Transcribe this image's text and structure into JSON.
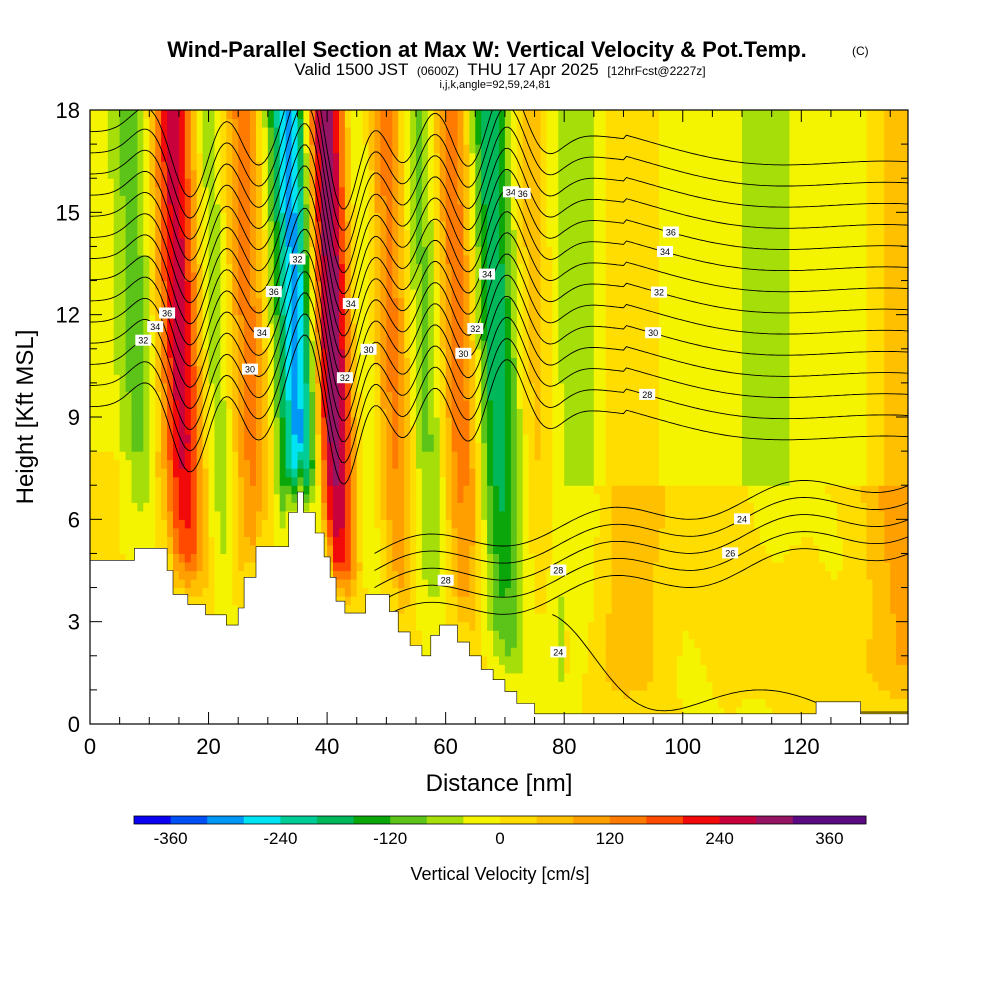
{
  "title": {
    "main": "Wind-Parallel Section at Max W: Vertical Velocity & Pot.Temp.",
    "main_suffix": "(C)",
    "valid_prefix": "Valid 1500 JST",
    "valid_utc": "(0600Z)",
    "valid_date": "THU 17 Apr 2025",
    "forecast_tag": "[12hrFcst@2227z]",
    "indices": "i,j,k,angle=92,59,24,81"
  },
  "chart_data": {
    "type": "heatmap",
    "xlabel": "Distance [nm]",
    "ylabel": "Height [Kft MSL]",
    "xlim": [
      0,
      138
    ],
    "ylim": [
      0,
      18
    ],
    "x_ticks": [
      "0",
      "20",
      "40",
      "60",
      "80",
      "100",
      "120"
    ],
    "y_ticks": [
      "0",
      "3",
      "6",
      "9",
      "12",
      "15",
      "18"
    ],
    "colorbar": {
      "label": "Vertical Velocity [cm/s]",
      "tick_labels": [
        "-360",
        "-240",
        "-120",
        "0",
        "120",
        "240",
        "360"
      ],
      "levels": [
        -400,
        -360,
        -320,
        -280,
        -240,
        -200,
        -160,
        -120,
        -80,
        -40,
        0,
        40,
        80,
        120,
        160,
        200,
        240,
        280,
        320,
        360,
        400
      ],
      "colors": [
        "#0a00f2",
        "#0050f5",
        "#0097f7",
        "#00e3f2",
        "#00cc96",
        "#00b85a",
        "#0aa60a",
        "#5cc418",
        "#a6de0a",
        "#f4f400",
        "#ffdd00",
        "#ffc000",
        "#ffa000",
        "#ff7a00",
        "#ff4a00",
        "#f20a0a",
        "#c8003c",
        "#961464",
        "#5a0a82",
        "#5a0a82"
      ]
    },
    "terrain_profile_kft": [
      [
        0,
        4.8
      ],
      [
        7.5,
        4.8
      ],
      [
        7.5,
        5.15
      ],
      [
        13,
        5.15
      ],
      [
        13,
        4.5
      ],
      [
        14,
        4.5
      ],
      [
        14,
        3.8
      ],
      [
        16.5,
        3.8
      ],
      [
        16.5,
        3.5
      ],
      [
        19.5,
        3.5
      ],
      [
        19.5,
        3.2
      ],
      [
        23,
        3.2
      ],
      [
        23,
        2.9
      ],
      [
        25,
        2.9
      ],
      [
        25,
        3.4
      ],
      [
        26,
        3.4
      ],
      [
        26,
        4.3
      ],
      [
        28,
        4.3
      ],
      [
        28,
        5.2
      ],
      [
        33.5,
        5.2
      ],
      [
        33.5,
        6.2
      ],
      [
        35,
        6.2
      ],
      [
        35,
        6.8
      ],
      [
        36,
        6.8
      ],
      [
        36,
        6.2
      ],
      [
        38,
        6.2
      ],
      [
        38,
        5.6
      ],
      [
        39.5,
        5.6
      ],
      [
        39.5,
        4.9
      ],
      [
        40.5,
        4.9
      ],
      [
        40.5,
        4.3
      ],
      [
        41.5,
        4.3
      ],
      [
        41.5,
        3.6
      ],
      [
        43,
        3.6
      ],
      [
        43,
        3.25
      ],
      [
        46.5,
        3.25
      ],
      [
        46.5,
        3.8
      ],
      [
        50.5,
        3.8
      ],
      [
        50.5,
        3.3
      ],
      [
        52,
        3.3
      ],
      [
        52,
        2.7
      ],
      [
        54,
        2.7
      ],
      [
        54,
        2.3
      ],
      [
        56,
        2.3
      ],
      [
        56,
        2.0
      ],
      [
        57.5,
        2.0
      ],
      [
        57.5,
        2.6
      ],
      [
        59,
        2.6
      ],
      [
        59,
        2.9
      ],
      [
        62,
        2.9
      ],
      [
        62,
        2.4
      ],
      [
        64,
        2.4
      ],
      [
        64,
        2.0
      ],
      [
        66,
        2.0
      ],
      [
        66,
        1.6
      ],
      [
        68,
        1.6
      ],
      [
        68,
        1.3
      ],
      [
        70,
        1.3
      ],
      [
        70,
        0.95
      ],
      [
        72,
        0.95
      ],
      [
        72,
        0.6
      ],
      [
        75,
        0.6
      ],
      [
        75,
        0.3
      ],
      [
        77,
        0.3
      ],
      [
        77,
        0.3
      ],
      [
        122.5,
        0.3
      ],
      [
        122.5,
        0.65
      ],
      [
        130,
        0.65
      ],
      [
        130,
        0.3
      ],
      [
        138,
        0.3
      ]
    ],
    "theta_contours_c": {
      "labels_upper": [
        "24",
        "26",
        "28",
        "30",
        "32",
        "34",
        "36"
      ],
      "labels_lower": [
        "24",
        "26",
        "28"
      ],
      "interval": 1
    },
    "vertical_velocity_bands": [
      {
        "center_nm": 10,
        "peak_cm_s": -100
      },
      {
        "center_nm": 17,
        "peak_cm_s": 260
      },
      {
        "center_nm": 23,
        "peak_cm_s": -110
      },
      {
        "center_nm": 28,
        "peak_cm_s": 150
      },
      {
        "center_nm": 37,
        "peak_cm_s": -320
      },
      {
        "center_nm": 42.5,
        "peak_cm_s": 380
      },
      {
        "center_nm": 47,
        "peak_cm_s": -120
      },
      {
        "center_nm": 53,
        "peak_cm_s": 160
      },
      {
        "center_nm": 58,
        "peak_cm_s": -130
      },
      {
        "center_nm": 64,
        "peak_cm_s": 170
      },
      {
        "center_nm": 70,
        "peak_cm_s": -200
      },
      {
        "center_nm": 77,
        "peak_cm_s": 90
      },
      {
        "center_nm": 82,
        "peak_cm_s": -90
      },
      {
        "center_nm": 90,
        "peak_cm_s": 60
      },
      {
        "center_nm": 100,
        "peak_cm_s": -40
      },
      {
        "center_nm": 114,
        "peak_cm_s": -50
      },
      {
        "center_nm": 128,
        "peak_cm_s": -40
      },
      {
        "center_nm": 136,
        "peak_cm_s": 60
      }
    ]
  }
}
